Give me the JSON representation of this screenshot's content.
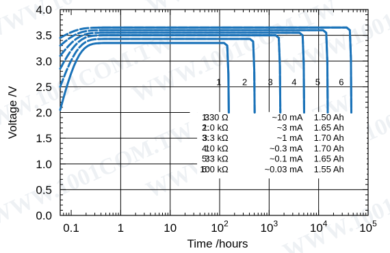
{
  "chart_data": {
    "type": "line",
    "title": "",
    "xlabel": "Time /hours",
    "ylabel": "Voltage /V",
    "xscale": "log",
    "xlim": [
      0.06,
      100000
    ],
    "ylim": [
      0.0,
      4.0
    ],
    "grid": true,
    "x_ticks": [
      {
        "value": 0.1,
        "label": "0.1",
        "exp": ""
      },
      {
        "value": 1,
        "label": "1",
        "exp": ""
      },
      {
        "value": 10,
        "label": "10",
        "exp": ""
      },
      {
        "value": 100,
        "label": "10",
        "exp": "2"
      },
      {
        "value": 1000,
        "label": "10",
        "exp": "3"
      },
      {
        "value": 10000,
        "label": "10",
        "exp": "4"
      },
      {
        "value": 100000,
        "label": "10",
        "exp": "5"
      }
    ],
    "y_ticks": [
      "0.0",
      "0.5",
      "1.0",
      "1.5",
      "2.0",
      "2.5",
      "3.0",
      "3.5",
      "4.0"
    ],
    "line_color": "#1a72b8",
    "series": [
      {
        "name": "1",
        "load": "330 Ω",
        "current": "~10 mA",
        "capacity": "1.50 Ah",
        "start_v": 2.05,
        "plateau_v": 3.35,
        "end_hours": 150
      },
      {
        "name": "2",
        "load": "1.0 kΩ",
        "current": "~3 mA",
        "capacity": "1.65 Ah",
        "start_v": 2.5,
        "plateau_v": 3.43,
        "end_hours": 500
      },
      {
        "name": "3",
        "load": "3.3 kΩ",
        "current": "~1 mA",
        "capacity": "1.70 Ah",
        "start_v": 2.85,
        "plateau_v": 3.5,
        "end_hours": 1650
      },
      {
        "name": "4",
        "load": "10 kΩ",
        "current": "~0.3 mA",
        "capacity": "1.70 Ah",
        "start_v": 3.1,
        "plateau_v": 3.55,
        "end_hours": 5000
      },
      {
        "name": "5",
        "load": "33 kΩ",
        "current": "~0.1 mA",
        "capacity": "1.65 Ah",
        "start_v": 3.3,
        "plateau_v": 3.6,
        "end_hours": 15000
      },
      {
        "name": "6",
        "load": "100 kΩ",
        "current": "~0.03 mA",
        "capacity": "1.55 Ah",
        "start_v": 3.45,
        "plateau_v": 3.65,
        "end_hours": 45000
      }
    ],
    "watermark": "WWW.1001COM.TW"
  }
}
